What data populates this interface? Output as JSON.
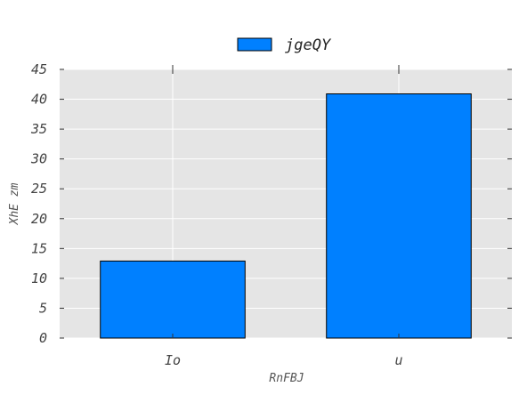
{
  "chart_data": {
    "type": "bar",
    "categories": [
      "Io",
      "u"
    ],
    "series": [
      {
        "name": "jgeQY",
        "values": [
          12.9,
          40.9
        ],
        "color": "#0080ff"
      }
    ],
    "xlabel": "RnFBJ",
    "ylabel": "XhE zm",
    "ylim": [
      0,
      45
    ],
    "yticks": [
      "0",
      "5",
      "10",
      "15",
      "20",
      "25",
      "30",
      "35",
      "40",
      "45"
    ],
    "grid": true,
    "legend_position": "top-center",
    "background_color": "#e5e5e5",
    "grid_color": "#ffffff"
  }
}
